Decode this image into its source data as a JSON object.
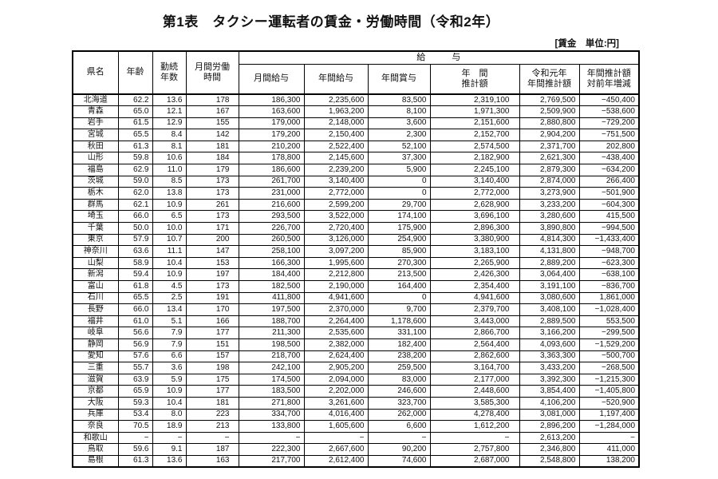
{
  "title": "第1表　タクシー運転者の賃金・労働時間（令和2年）",
  "unit_note": "[賃金　単位:円]",
  "table": {
    "group_label": "給　　　与",
    "col_keys": [
      "pref",
      "age",
      "tenure",
      "hours",
      "monthly",
      "annual",
      "bonus",
      "estimate",
      "prev_estimate",
      "yoy"
    ],
    "headers": {
      "pref": "県名",
      "age": "年齢",
      "tenure": "勤続\n年数",
      "hours": "月間労働\n時間",
      "monthly": "月間給与",
      "annual": "年間給与",
      "bonus": "年間賞与",
      "estimate": "年　間\n推計額",
      "prev_estimate": "令和元年\n年間推計額",
      "yoy": "年間推計額\n対前年増減"
    },
    "rows": [
      [
        "北海道",
        "62.2",
        "13.6",
        "178",
        "186,300",
        "2,235,600",
        "83,500",
        "2,319,100",
        "2,769,500",
        "−450,400"
      ],
      [
        "青森",
        "65.0",
        "12.1",
        "167",
        "163,600",
        "1,963,200",
        "8,100",
        "1,971,300",
        "2,509,900",
        "−538,600"
      ],
      [
        "岩手",
        "61.5",
        "12.9",
        "155",
        "179,000",
        "2,148,000",
        "3,600",
        "2,151,600",
        "2,880,800",
        "−729,200"
      ],
      [
        "宮城",
        "65.5",
        "8.4",
        "142",
        "179,200",
        "2,150,400",
        "2,300",
        "2,152,700",
        "2,904,200",
        "−751,500"
      ],
      [
        "秋田",
        "61.3",
        "8.1",
        "181",
        "210,200",
        "2,522,400",
        "52,100",
        "2,574,500",
        "2,371,700",
        "202,800"
      ],
      [
        "山形",
        "59.8",
        "10.6",
        "184",
        "178,800",
        "2,145,600",
        "37,300",
        "2,182,900",
        "2,621,300",
        "−438,400"
      ],
      [
        "福島",
        "62.9",
        "11.0",
        "179",
        "186,600",
        "2,239,200",
        "5,900",
        "2,245,100",
        "2,879,300",
        "−634,200"
      ],
      [
        "茨城",
        "59.0",
        "8.5",
        "173",
        "261,700",
        "3,140,400",
        "0",
        "3,140,400",
        "2,874,000",
        "266,400"
      ],
      [
        "栃木",
        "62.0",
        "13.8",
        "173",
        "231,000",
        "2,772,000",
        "0",
        "2,772,000",
        "3,273,900",
        "−501,900"
      ],
      [
        "群馬",
        "62.1",
        "10.9",
        "261",
        "216,600",
        "2,599,200",
        "29,700",
        "2,628,900",
        "3,233,200",
        "−604,300"
      ],
      [
        "埼玉",
        "66.0",
        "6.5",
        "173",
        "293,500",
        "3,522,000",
        "174,100",
        "3,696,100",
        "3,280,600",
        "415,500"
      ],
      [
        "千葉",
        "50.0",
        "10.0",
        "171",
        "226,700",
        "2,720,400",
        "175,900",
        "2,896,300",
        "3,890,800",
        "−994,500"
      ],
      [
        "東京",
        "57.9",
        "10.7",
        "200",
        "260,500",
        "3,126,000",
        "254,900",
        "3,380,900",
        "4,814,300",
        "−1,433,400"
      ],
      [
        "神奈川",
        "63.6",
        "11.1",
        "147",
        "258,100",
        "3,097,200",
        "85,900",
        "3,183,100",
        "4,131,800",
        "−948,700"
      ],
      [
        "山梨",
        "58.9",
        "10.4",
        "153",
        "166,300",
        "1,995,600",
        "270,300",
        "2,265,900",
        "2,889,200",
        "−623,300"
      ],
      [
        "新潟",
        "59.4",
        "10.9",
        "197",
        "184,400",
        "2,212,800",
        "213,500",
        "2,426,300",
        "3,064,400",
        "−638,100"
      ],
      [
        "富山",
        "61.8",
        "4.5",
        "173",
        "182,500",
        "2,190,000",
        "164,400",
        "2,354,400",
        "3,191,100",
        "−836,700"
      ],
      [
        "石川",
        "65.5",
        "2.5",
        "191",
        "411,800",
        "4,941,600",
        "0",
        "4,941,600",
        "3,080,600",
        "1,861,000"
      ],
      [
        "長野",
        "66.0",
        "13.4",
        "170",
        "197,500",
        "2,370,000",
        "9,700",
        "2,379,700",
        "3,408,100",
        "−1,028,400"
      ],
      [
        "福井",
        "61.0",
        "5.1",
        "166",
        "188,700",
        "2,264,400",
        "1,178,600",
        "3,443,000",
        "2,889,500",
        "553,500"
      ],
      [
        "岐阜",
        "56.6",
        "7.9",
        "177",
        "211,300",
        "2,535,600",
        "331,100",
        "2,866,700",
        "3,166,200",
        "−299,500"
      ],
      [
        "静岡",
        "56.9",
        "7.9",
        "151",
        "198,500",
        "2,382,000",
        "182,400",
        "2,564,400",
        "4,093,600",
        "−1,529,200"
      ],
      [
        "愛知",
        "57.6",
        "6.6",
        "157",
        "218,700",
        "2,624,400",
        "238,200",
        "2,862,600",
        "3,363,300",
        "−500,700"
      ],
      [
        "三重",
        "55.7",
        "3.6",
        "198",
        "242,100",
        "2,905,200",
        "259,500",
        "3,164,700",
        "3,433,200",
        "−268,500"
      ],
      [
        "滋賀",
        "63.9",
        "5.9",
        "175",
        "174,500",
        "2,094,000",
        "83,000",
        "2,177,000",
        "3,392,300",
        "−1,215,300"
      ],
      [
        "京都",
        "65.9",
        "10.9",
        "177",
        "183,500",
        "2,202,000",
        "246,600",
        "2,448,600",
        "3,854,400",
        "−1,405,800"
      ],
      [
        "大阪",
        "59.3",
        "10.4",
        "181",
        "271,800",
        "3,261,600",
        "323,700",
        "3,585,300",
        "4,106,200",
        "−520,900"
      ],
      [
        "兵庫",
        "53.4",
        "8.0",
        "223",
        "334,700",
        "4,016,400",
        "262,000",
        "4,278,400",
        "3,081,000",
        "1,197,400"
      ],
      [
        "奈良",
        "70.5",
        "18.9",
        "213",
        "133,800",
        "1,605,600",
        "6,600",
        "1,612,200",
        "2,896,200",
        "−1,284,000"
      ],
      [
        "和歌山",
        "−",
        "−",
        "−",
        "−",
        "−",
        "−",
        "−",
        "2,613,200",
        "−"
      ],
      [
        "鳥取",
        "59.6",
        "9.1",
        "187",
        "222,300",
        "2,667,600",
        "90,200",
        "2,757,800",
        "2,346,800",
        "411,000"
      ],
      [
        "島根",
        "61.3",
        "13.6",
        "163",
        "217,700",
        "2,612,400",
        "74,600",
        "2,687,000",
        "2,548,800",
        "138,200"
      ]
    ]
  }
}
